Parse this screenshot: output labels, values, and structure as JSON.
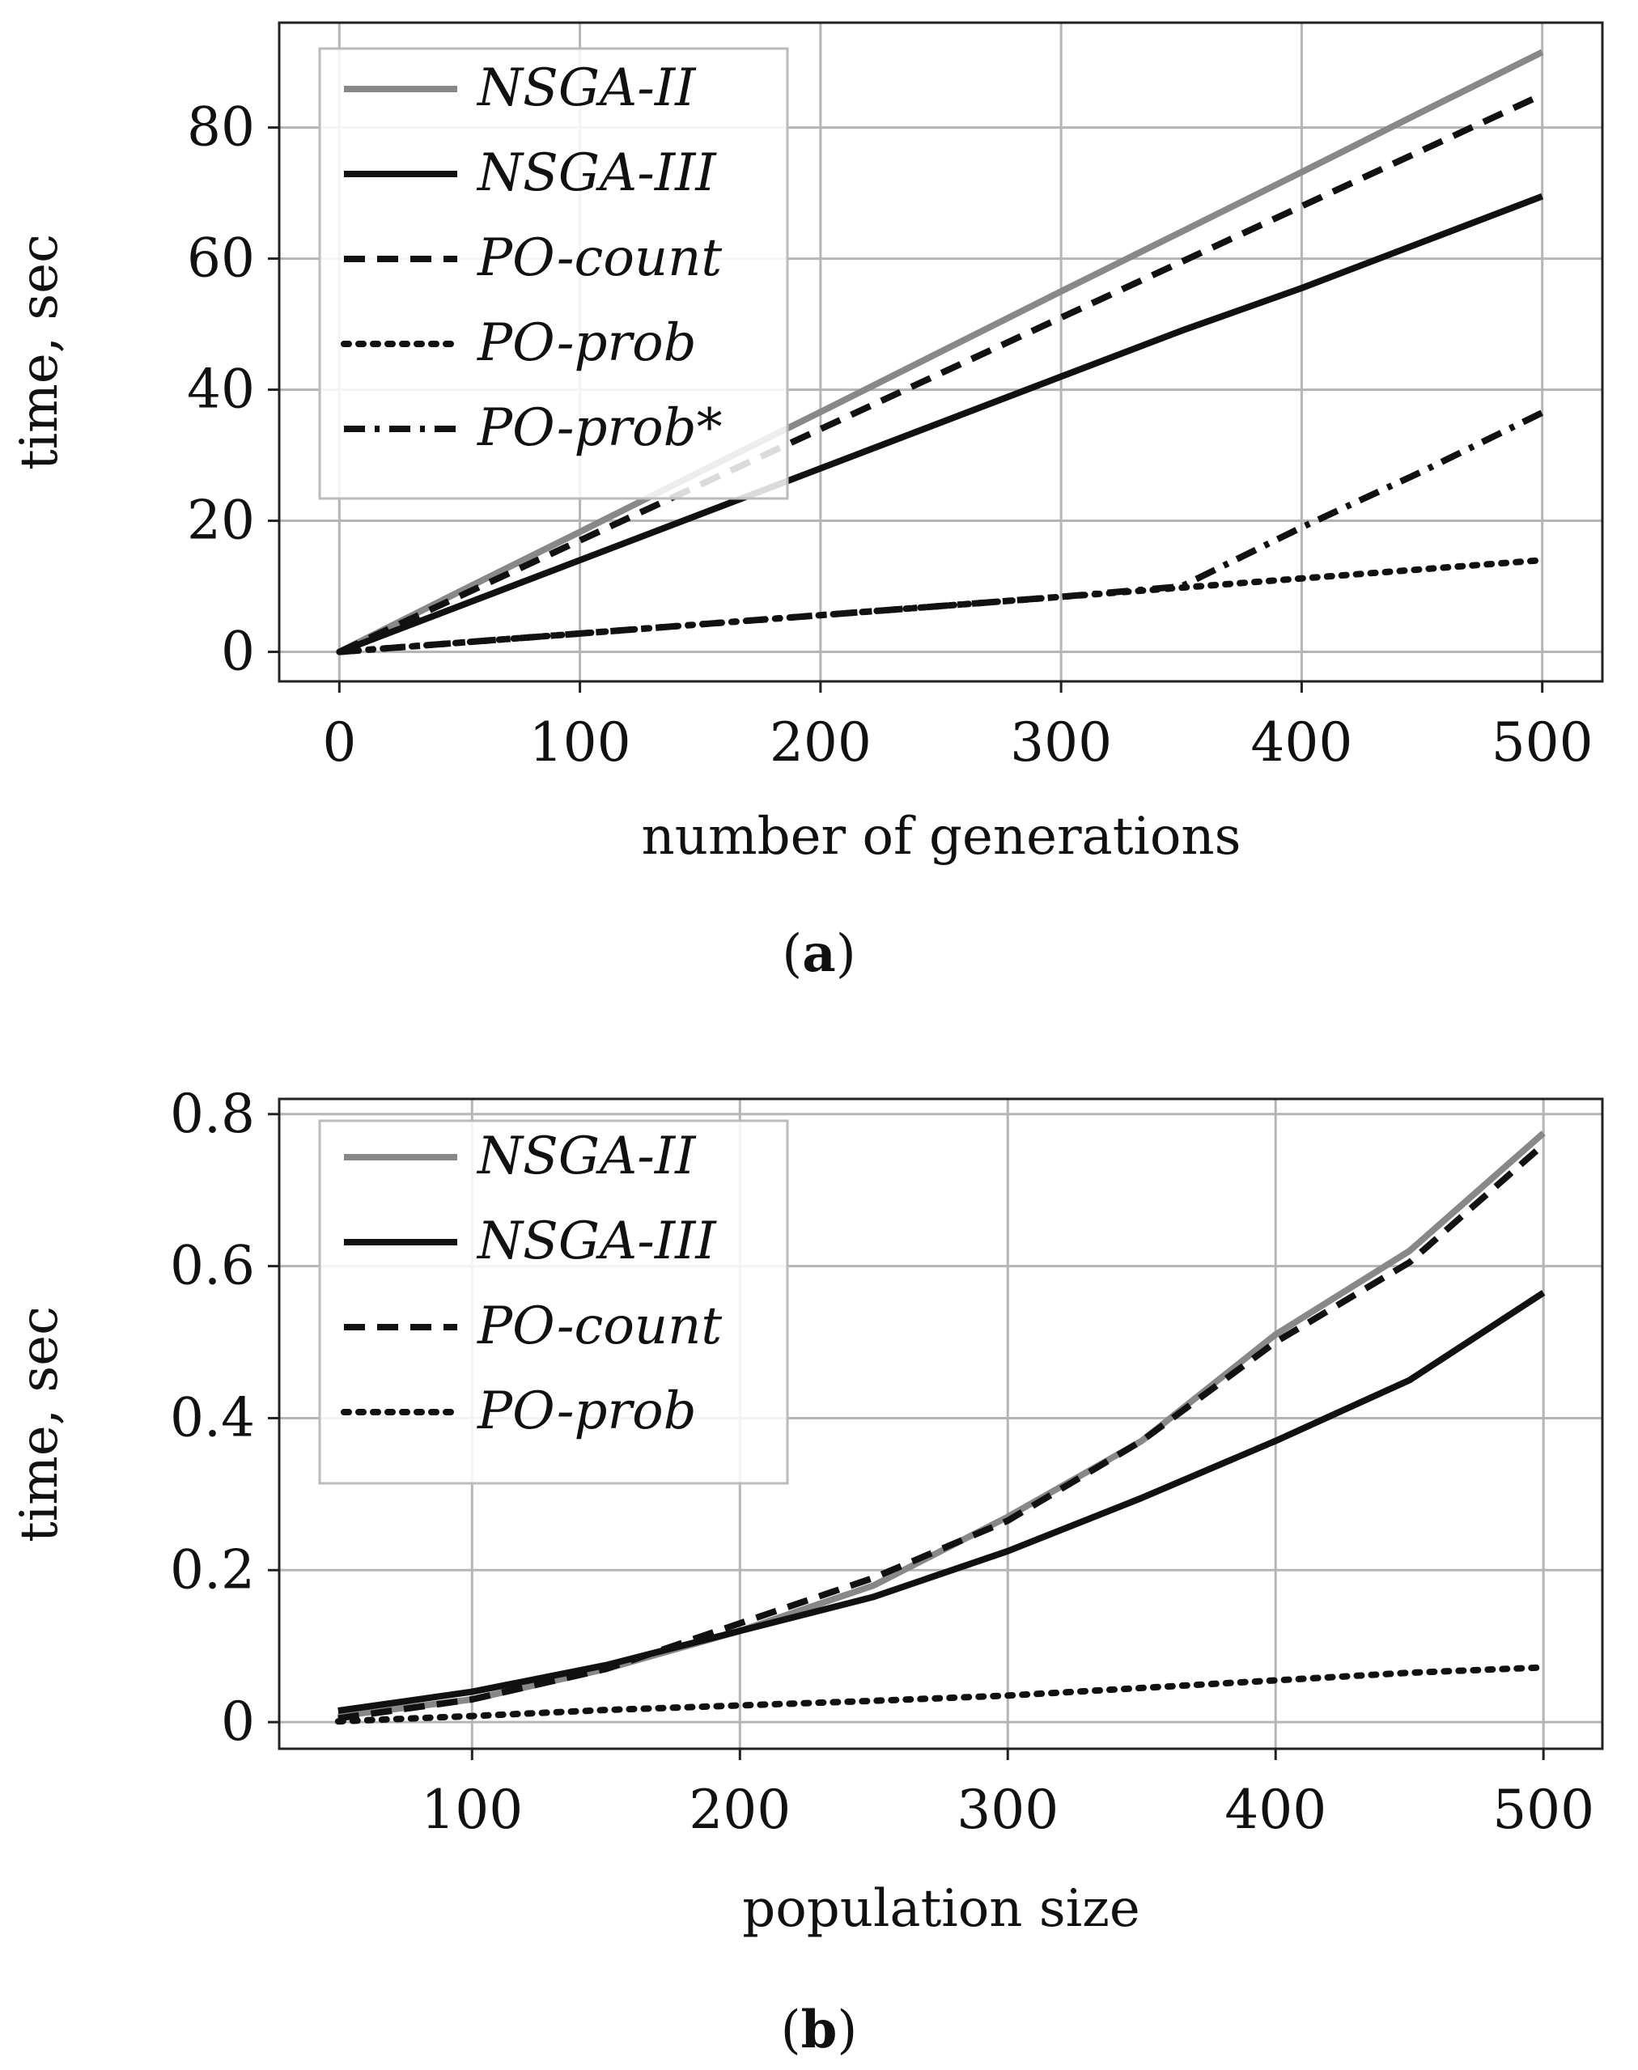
{
  "chart_data": [
    {
      "type": "line",
      "caption_label": "a",
      "xlabel": "number of generations",
      "ylabel": "time, sec",
      "xlim": [
        -25,
        525
      ],
      "ylim": [
        -4.5,
        96
      ],
      "xticks": [
        0,
        100,
        200,
        300,
        400,
        500
      ],
      "yticks": [
        0,
        20,
        40,
        60,
        80
      ],
      "grid": true,
      "legend_position": "top-left",
      "series": [
        {
          "name": "NSGA-II",
          "style": "solid",
          "color": "#888888",
          "x": [
            0,
            50,
            100,
            150,
            200,
            250,
            300,
            350,
            400,
            450,
            500
          ],
          "y": [
            0,
            9.2,
            18.3,
            27.5,
            36.6,
            45.8,
            55,
            64.1,
            73.2,
            82.4,
            91.5
          ]
        },
        {
          "name": "NSGA-III",
          "style": "solid",
          "color": "#111111",
          "x": [
            0,
            50,
            100,
            150,
            200,
            250,
            300,
            350,
            400,
            450,
            500
          ],
          "y": [
            0,
            7,
            14,
            21,
            28,
            35,
            42,
            49,
            55.5,
            62.5,
            69.5
          ]
        },
        {
          "name": "PO-count",
          "style": "dashed",
          "color": "#111111",
          "x": [
            0,
            50,
            100,
            150,
            200,
            250,
            300,
            350,
            400,
            450,
            500
          ],
          "y": [
            0,
            8.5,
            17,
            25.5,
            34,
            42.5,
            51,
            59.5,
            68,
            76.5,
            85
          ]
        },
        {
          "name": "PO-prob",
          "style": "dotted",
          "color": "#111111",
          "x": [
            0,
            50,
            100,
            150,
            200,
            250,
            300,
            350,
            400,
            450,
            500
          ],
          "y": [
            0,
            1.4,
            2.8,
            4.2,
            5.6,
            7,
            8.4,
            9.8,
            11.2,
            12.6,
            14
          ]
        },
        {
          "name": "PO-prob*",
          "style": "dashdot",
          "color": "#111111",
          "x": [
            0,
            50,
            100,
            150,
            200,
            250,
            300,
            350,
            400,
            450,
            500
          ],
          "y": [
            0,
            1.4,
            2.8,
            4.2,
            5.6,
            7,
            8.4,
            10,
            19,
            27.5,
            36.5
          ]
        }
      ]
    },
    {
      "type": "line",
      "caption_label": "b",
      "xlabel": "population size",
      "ylabel": "time, sec",
      "xlim": [
        28,
        522
      ],
      "ylim": [
        -0.035,
        0.82
      ],
      "xticks": [
        100,
        200,
        300,
        400,
        500
      ],
      "yticks": [
        0,
        0.2,
        0.4,
        0.6,
        0.8
      ],
      "grid": true,
      "legend_position": "top-left",
      "series": [
        {
          "name": "NSGA-II",
          "style": "solid",
          "color": "#888888",
          "x": [
            50,
            100,
            150,
            200,
            250,
            300,
            350,
            400,
            450,
            500
          ],
          "y": [
            0.008,
            0.03,
            0.07,
            0.12,
            0.18,
            0.27,
            0.37,
            0.51,
            0.62,
            0.775
          ]
        },
        {
          "name": "NSGA-III",
          "style": "solid",
          "color": "#111111",
          "x": [
            50,
            100,
            150,
            200,
            250,
            300,
            350,
            400,
            450,
            500
          ],
          "y": [
            0.015,
            0.04,
            0.075,
            0.12,
            0.165,
            0.225,
            0.295,
            0.37,
            0.45,
            0.565
          ]
        },
        {
          "name": "PO-count",
          "style": "dashed",
          "color": "#111111",
          "x": [
            50,
            100,
            150,
            200,
            250,
            300,
            350,
            400,
            450,
            500
          ],
          "y": [
            0.005,
            0.03,
            0.07,
            0.13,
            0.19,
            0.265,
            0.37,
            0.5,
            0.605,
            0.76
          ]
        },
        {
          "name": "PO-prob",
          "style": "dotted",
          "color": "#111111",
          "x": [
            50,
            100,
            150,
            200,
            250,
            300,
            350,
            400,
            450,
            500
          ],
          "y": [
            0.001,
            0.008,
            0.016,
            0.022,
            0.028,
            0.035,
            0.045,
            0.055,
            0.065,
            0.072
          ]
        }
      ]
    }
  ]
}
